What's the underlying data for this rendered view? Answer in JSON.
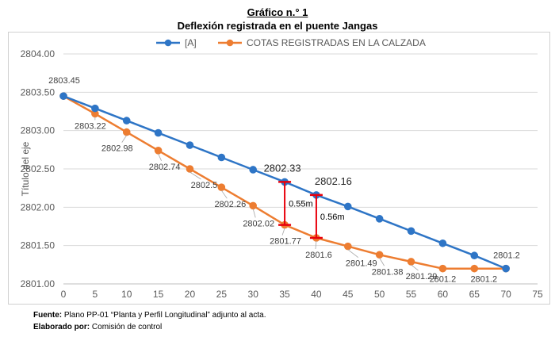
{
  "header": {
    "title": "Gráfico n.° 1",
    "subtitle": "Deflexión registrada en el puente Jangas"
  },
  "chart_data": {
    "type": "line",
    "title": "Deflexión registrada en el puente Jangas",
    "ylabel": "Título del eje",
    "xlabel": "",
    "xlim": [
      0,
      75
    ],
    "ylim": [
      2801.0,
      2804.0
    ],
    "x_ticks": [
      0,
      5,
      10,
      15,
      20,
      25,
      30,
      35,
      40,
      45,
      50,
      55,
      60,
      65,
      70,
      75
    ],
    "y_ticks": [
      2801.0,
      2801.5,
      2802.0,
      2802.5,
      2803.0,
      2803.5,
      2804.0
    ],
    "y_tick_labels": [
      "2801.00",
      "2801.50",
      "2802.00",
      "2802.50",
      "2803.00",
      "2803.50",
      "2804.00"
    ],
    "grid": true,
    "legend": "top-center",
    "series": [
      {
        "name": "[A]",
        "color": "#2E75C6",
        "x": [
          0,
          5,
          10,
          15,
          20,
          25,
          30,
          35,
          40,
          45,
          50,
          55,
          60,
          65,
          70
        ],
        "values": [
          2803.45,
          2803.29,
          2803.13,
          2802.97,
          2802.81,
          2802.65,
          2802.49,
          2802.33,
          2802.16,
          2802.01,
          2801.85,
          2801.69,
          2801.53,
          2801.37,
          2801.2
        ],
        "labels": [
          {
            "x": 35,
            "text": "2802.33"
          },
          {
            "x": 40,
            "text": "2802.16"
          },
          {
            "x": 70,
            "text": "2801.2"
          }
        ]
      },
      {
        "name": "COTAS REGISTRADAS EN LA CALZADA",
        "color": "#ED7D31",
        "x": [
          0,
          5,
          10,
          15,
          20,
          25,
          30,
          35,
          40,
          45,
          50,
          55,
          60,
          65,
          70
        ],
        "values": [
          2803.45,
          2803.22,
          2802.98,
          2802.74,
          2802.5,
          2802.26,
          2802.02,
          2801.77,
          2801.6,
          2801.49,
          2801.38,
          2801.29,
          2801.2,
          2801.2,
          2801.2
        ],
        "labels": [
          {
            "x": 0,
            "text": "2803.45"
          },
          {
            "x": 5,
            "text": "2803.22"
          },
          {
            "x": 10,
            "text": "2802.98"
          },
          {
            "x": 15,
            "text": "2802.74"
          },
          {
            "x": 20,
            "text": "2802.5"
          },
          {
            "x": 25,
            "text": "2802.26"
          },
          {
            "x": 30,
            "text": "2802.02"
          },
          {
            "x": 35,
            "text": "2801.77"
          },
          {
            "x": 40,
            "text": "2801.6"
          },
          {
            "x": 45,
            "text": "2801.49"
          },
          {
            "x": 50,
            "text": "2801.38"
          },
          {
            "x": 55,
            "text": "2801.29"
          },
          {
            "x": 60,
            "text": "2801.2"
          },
          {
            "x": 65,
            "text": "2801.2"
          }
        ]
      }
    ],
    "annotations": [
      {
        "x": 35,
        "y_top": 2802.33,
        "y_bottom": 2801.77,
        "text": "0.55m",
        "color": "#E8000B"
      },
      {
        "x": 40,
        "y_top": 2802.16,
        "y_bottom": 2801.6,
        "text": "0.56m",
        "color": "#E8000B"
      }
    ]
  },
  "footer": {
    "source_label": "Fuente:",
    "source_text": "Plano PP-01 “Planta y Perfil Longitudinal” adjunto al acta.",
    "made_by_label": "Elaborado por:",
    "made_by_text": "Comisión de control"
  }
}
